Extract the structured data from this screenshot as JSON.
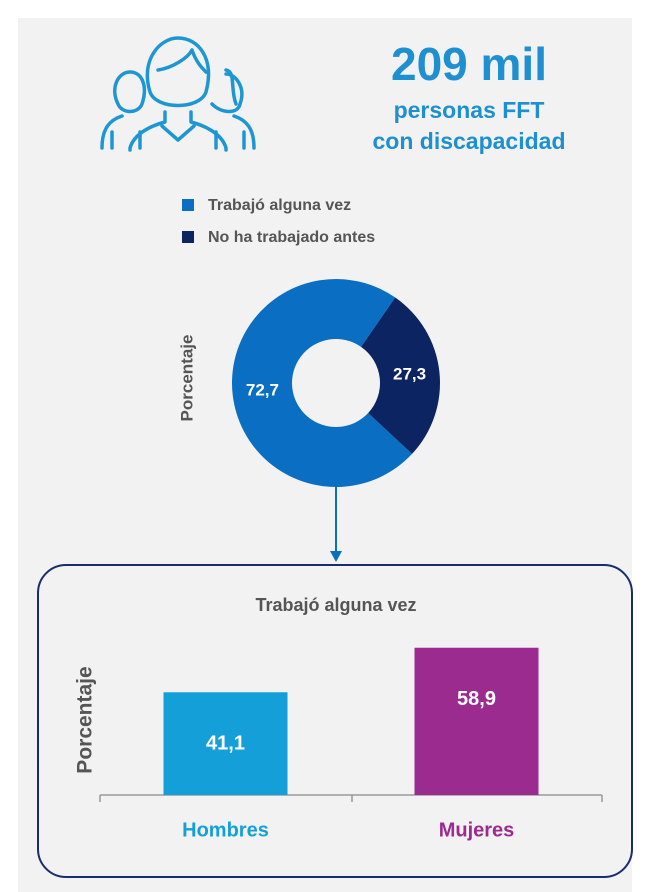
{
  "header": {
    "title": "209 mil",
    "subtitle_1": "personas FFT",
    "subtitle_2": "con discapacidad"
  },
  "chart_data": [
    {
      "type": "pie",
      "ylabel": "Porcentaje",
      "categories": [
        "Trabajó alguna vez",
        "No ha trabajado antes"
      ],
      "values": [
        72.7,
        27.3
      ],
      "value_labels": [
        "72,7",
        "27,3"
      ],
      "colors": [
        "#0a6fc2",
        "#0c2461"
      ]
    },
    {
      "type": "bar",
      "title": "Trabajó alguna vez",
      "ylabel": "Porcentaje",
      "categories": [
        "Hombres",
        "Mujeres"
      ],
      "values": [
        41.1,
        58.9
      ],
      "value_labels": [
        "41,1",
        "58,9"
      ],
      "colors": [
        "#159fd9",
        "#9c2b8f"
      ]
    }
  ]
}
